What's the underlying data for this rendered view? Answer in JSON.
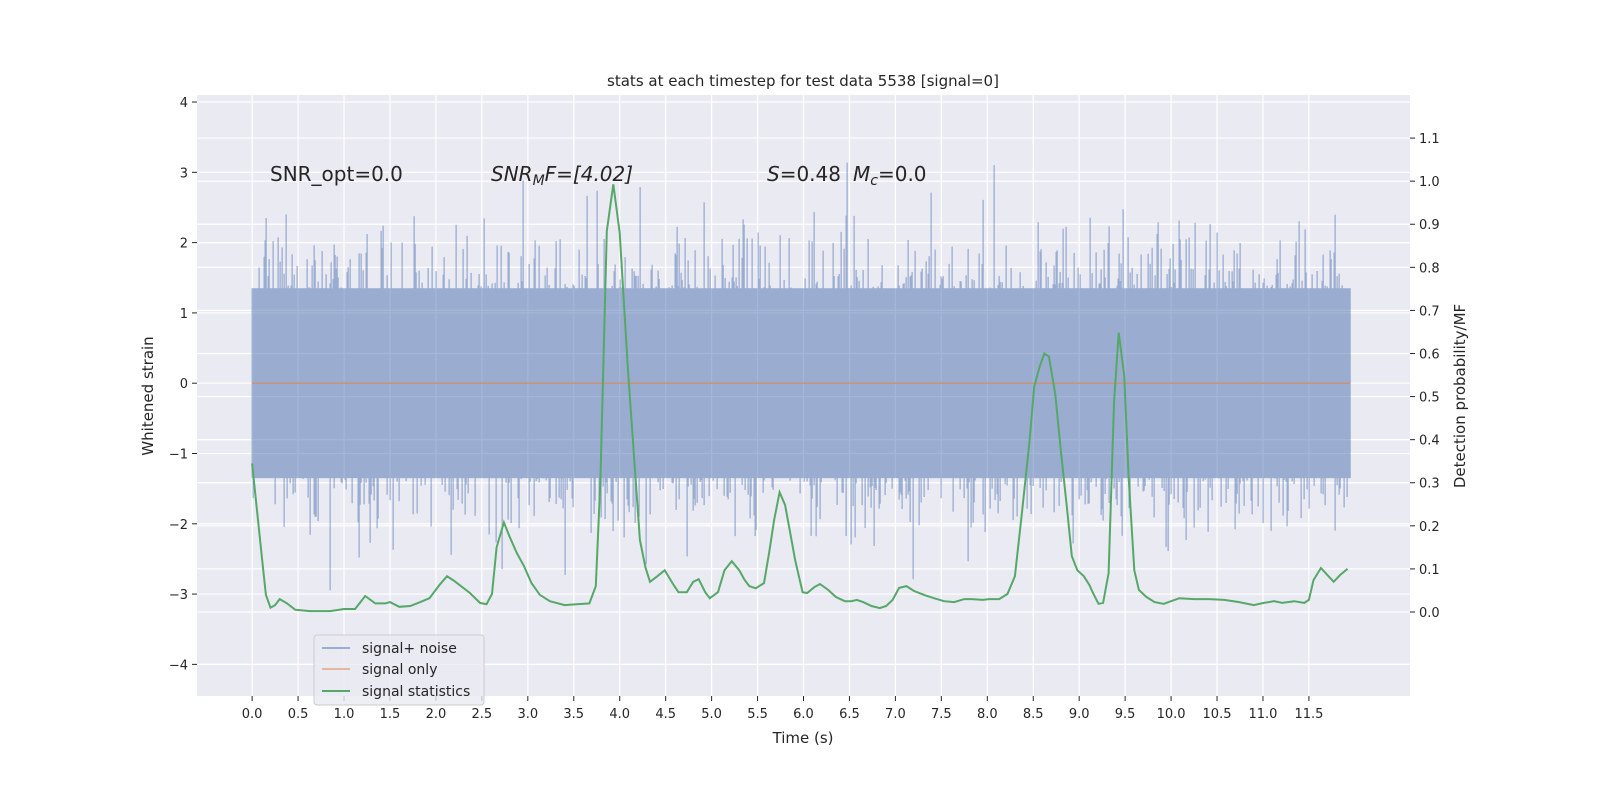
{
  "chart_data": {
    "type": "line",
    "title": "stats at each timestep for test data 5538 [signal=0]",
    "xlabel": "Time (s)",
    "ylabel": "Whitened strain",
    "ylabel_right": "Detection probability/MF",
    "xlim": [
      -0.6,
      12.6
    ],
    "ylim": [
      -4.45,
      4.1
    ],
    "ylim_right": [
      -0.195,
      1.2
    ],
    "xticks": [
      "0.0",
      "0.5",
      "1.0",
      "1.5",
      "2.0",
      "2.5",
      "3.0",
      "3.5",
      "4.0",
      "4.5",
      "5.0",
      "5.5",
      "6.0",
      "6.5",
      "7.0",
      "7.5",
      "8.0",
      "8.5",
      "9.0",
      "9.5",
      "10.0",
      "10.5",
      "11.0",
      "11.5"
    ],
    "yticks": [
      "−4",
      "−3",
      "−2",
      "−1",
      "0",
      "1",
      "2",
      "3",
      "4"
    ],
    "yticks_right": [
      "0.0",
      "0.1",
      "0.2",
      "0.3",
      "0.4",
      "0.5",
      "0.6",
      "0.7",
      "0.8",
      "0.9",
      "1.0",
      "1.1"
    ],
    "grid": true,
    "background": "#eaeaf2",
    "legend": {
      "placement": "lower-left",
      "entries": [
        "signal+ noise",
        "signal only",
        "signal statistics"
      ]
    },
    "annotations": {
      "snr_opt": "SNR_opt=0.0",
      "snr_mf_main": "SNR",
      "snr_mf_sub": "M",
      "snr_mf_rest": "F=[4.02]",
      "s_sym": "S",
      "s_val": "=0.48",
      "mc_sym": "M",
      "mc_sub": "c",
      "mc_val": "=0.0"
    },
    "series": [
      {
        "name": "signal+ noise",
        "color": "#4c72b0",
        "axis": "left",
        "t_range": [
          0,
          11.95
        ],
        "approx_min": -3.6,
        "approx_max": 3.75,
        "note_core_band": [
          -1.4,
          1.4
        ]
      },
      {
        "name": "signal only",
        "color": "#dd8452",
        "axis": "left",
        "t_range": [
          0,
          11.95
        ],
        "value": 0.0
      },
      {
        "name": "signal statistics",
        "color": "#55a868",
        "axis": "right",
        "points": [
          [
            0,
            0.345
          ],
          [
            0.11,
            0.12
          ],
          [
            0.15,
            0.04
          ],
          [
            0.2,
            0.01
          ],
          [
            0.25,
            0.016
          ],
          [
            0.3,
            0.03
          ],
          [
            0.38,
            0.02
          ],
          [
            0.47,
            0.005
          ],
          [
            0.63,
            0.002
          ],
          [
            0.85,
            0.002
          ],
          [
            1.0,
            0.007
          ],
          [
            1.12,
            0.007
          ],
          [
            1.23,
            0.037
          ],
          [
            1.34,
            0.02
          ],
          [
            1.45,
            0.02
          ],
          [
            1.5,
            0.023
          ],
          [
            1.6,
            0.012
          ],
          [
            1.72,
            0.014
          ],
          [
            1.83,
            0.023
          ],
          [
            1.93,
            0.032
          ],
          [
            2.04,
            0.063
          ],
          [
            2.12,
            0.083
          ],
          [
            2.2,
            0.072
          ],
          [
            2.37,
            0.044
          ],
          [
            2.48,
            0.021
          ],
          [
            2.55,
            0.018
          ],
          [
            2.61,
            0.042
          ],
          [
            2.66,
            0.15
          ],
          [
            2.74,
            0.208
          ],
          [
            2.8,
            0.176
          ],
          [
            2.88,
            0.137
          ],
          [
            2.96,
            0.106
          ],
          [
            3.04,
            0.067
          ],
          [
            3.13,
            0.04
          ],
          [
            3.24,
            0.025
          ],
          [
            3.4,
            0.016
          ],
          [
            3.53,
            0.018
          ],
          [
            3.67,
            0.02
          ],
          [
            3.74,
            0.06
          ],
          [
            3.79,
            0.305
          ],
          [
            3.86,
            0.884
          ],
          [
            3.93,
            0.993
          ],
          [
            4.0,
            0.88
          ],
          [
            4.09,
            0.56
          ],
          [
            4.22,
            0.167
          ],
          [
            4.28,
            0.104
          ],
          [
            4.33,
            0.07
          ],
          [
            4.41,
            0.083
          ],
          [
            4.49,
            0.097
          ],
          [
            4.58,
            0.065
          ],
          [
            4.64,
            0.046
          ],
          [
            4.73,
            0.046
          ],
          [
            4.8,
            0.07
          ],
          [
            4.86,
            0.076
          ],
          [
            4.93,
            0.046
          ],
          [
            4.98,
            0.032
          ],
          [
            5.07,
            0.046
          ],
          [
            5.14,
            0.097
          ],
          [
            5.22,
            0.118
          ],
          [
            5.3,
            0.097
          ],
          [
            5.36,
            0.074
          ],
          [
            5.41,
            0.06
          ],
          [
            5.48,
            0.055
          ],
          [
            5.57,
            0.067
          ],
          [
            5.63,
            0.143
          ],
          [
            5.68,
            0.213
          ],
          [
            5.74,
            0.278
          ],
          [
            5.8,
            0.248
          ],
          [
            5.85,
            0.19
          ],
          [
            5.91,
            0.12
          ],
          [
            5.99,
            0.046
          ],
          [
            6.04,
            0.044
          ],
          [
            6.12,
            0.058
          ],
          [
            6.18,
            0.065
          ],
          [
            6.27,
            0.051
          ],
          [
            6.35,
            0.035
          ],
          [
            6.45,
            0.025
          ],
          [
            6.52,
            0.025
          ],
          [
            6.58,
            0.028
          ],
          [
            6.65,
            0.023
          ],
          [
            6.74,
            0.014
          ],
          [
            6.83,
            0.009
          ],
          [
            6.9,
            0.014
          ],
          [
            6.97,
            0.028
          ],
          [
            7.04,
            0.056
          ],
          [
            7.12,
            0.06
          ],
          [
            7.2,
            0.049
          ],
          [
            7.32,
            0.039
          ],
          [
            7.42,
            0.032
          ],
          [
            7.53,
            0.025
          ],
          [
            7.64,
            0.023
          ],
          [
            7.75,
            0.03
          ],
          [
            7.83,
            0.03
          ],
          [
            7.95,
            0.028
          ],
          [
            8.02,
            0.03
          ],
          [
            8.13,
            0.03
          ],
          [
            8.22,
            0.042
          ],
          [
            8.3,
            0.083
          ],
          [
            8.38,
            0.236
          ],
          [
            8.46,
            0.398
          ],
          [
            8.51,
            0.523
          ],
          [
            8.57,
            0.57
          ],
          [
            8.62,
            0.6
          ],
          [
            8.67,
            0.593
          ],
          [
            8.74,
            0.505
          ],
          [
            8.8,
            0.375
          ],
          [
            8.87,
            0.236
          ],
          [
            8.92,
            0.13
          ],
          [
            8.98,
            0.097
          ],
          [
            9.05,
            0.083
          ],
          [
            9.11,
            0.063
          ],
          [
            9.15,
            0.044
          ],
          [
            9.21,
            0.019
          ],
          [
            9.26,
            0.021
          ],
          [
            9.32,
            0.09
          ],
          [
            9.38,
            0.49
          ],
          [
            9.43,
            0.648
          ],
          [
            9.49,
            0.549
          ],
          [
            9.54,
            0.306
          ],
          [
            9.6,
            0.097
          ],
          [
            9.65,
            0.051
          ],
          [
            9.73,
            0.035
          ],
          [
            9.82,
            0.023
          ],
          [
            9.92,
            0.019
          ],
          [
            10.09,
            0.032
          ],
          [
            10.25,
            0.03
          ],
          [
            10.41,
            0.03
          ],
          [
            10.58,
            0.028
          ],
          [
            10.74,
            0.023
          ],
          [
            10.9,
            0.016
          ],
          [
            11.01,
            0.021
          ],
          [
            11.12,
            0.025
          ],
          [
            11.21,
            0.021
          ],
          [
            11.34,
            0.025
          ],
          [
            11.45,
            0.021
          ],
          [
            11.5,
            0.028
          ],
          [
            11.55,
            0.074
          ],
          [
            11.63,
            0.102
          ],
          [
            11.7,
            0.086
          ],
          [
            11.77,
            0.07
          ],
          [
            11.84,
            0.086
          ],
          [
            11.92,
            0.1
          ]
        ]
      }
    ]
  }
}
